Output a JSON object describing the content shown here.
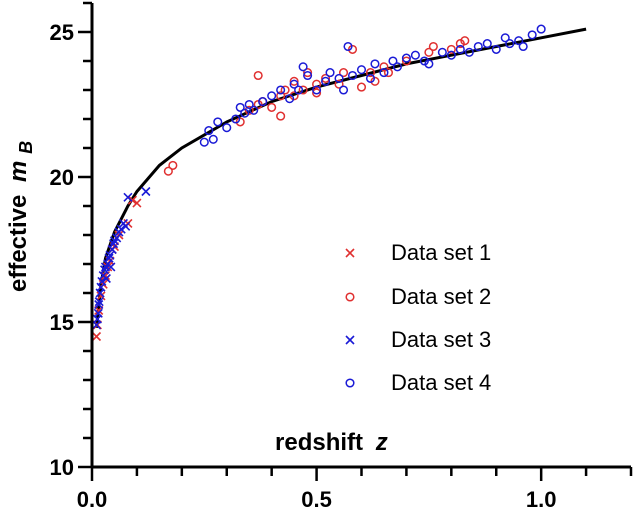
{
  "chart_data": {
    "type": "scatter",
    "xlabel": "redshift",
    "xlabel_var": "z",
    "ylabel": "effective",
    "ylabel_var": "m",
    "ylabel_sub": "B",
    "xlim": [
      0,
      1.2
    ],
    "ylim": [
      10,
      26
    ],
    "xticks": [
      0.0,
      0.5,
      1.0
    ],
    "xtick_labels": [
      "0.0",
      "0.5",
      "1.0"
    ],
    "yticks": [
      10,
      15,
      20,
      25
    ],
    "ytick_labels": [
      "10",
      "15",
      "20",
      "25"
    ],
    "legend_position": "center-right",
    "fit_curve": {
      "x": [
        0.01,
        0.02,
        0.03,
        0.05,
        0.08,
        0.1,
        0.15,
        0.2,
        0.3,
        0.4,
        0.5,
        0.6,
        0.7,
        0.8,
        0.9,
        1.0,
        1.1
      ],
      "y": [
        14.8,
        16.3,
        17.2,
        18.1,
        19.0,
        19.5,
        20.4,
        21.0,
        21.9,
        22.6,
        23.1,
        23.5,
        23.9,
        24.2,
        24.5,
        24.8,
        25.1
      ]
    },
    "series": [
      {
        "name": "Data set 1",
        "marker": "x",
        "color": "#e03030",
        "points": [
          [
            0.01,
            14.5
          ],
          [
            0.012,
            14.9
          ],
          [
            0.015,
            15.4
          ],
          [
            0.02,
            15.9
          ],
          [
            0.025,
            16.3
          ],
          [
            0.03,
            16.6
          ],
          [
            0.035,
            16.9
          ],
          [
            0.04,
            17.1
          ],
          [
            0.045,
            17.5
          ],
          [
            0.05,
            17.6
          ],
          [
            0.06,
            18.0
          ],
          [
            0.08,
            18.4
          ],
          [
            0.09,
            19.2
          ],
          [
            0.1,
            19.1
          ]
        ]
      },
      {
        "name": "Data set 2",
        "marker": "o",
        "color": "#e03030",
        "points": [
          [
            0.17,
            20.2
          ],
          [
            0.18,
            20.4
          ],
          [
            0.33,
            21.9
          ],
          [
            0.35,
            22.3
          ],
          [
            0.37,
            22.5
          ],
          [
            0.37,
            23.5
          ],
          [
            0.38,
            22.6
          ],
          [
            0.4,
            22.4
          ],
          [
            0.42,
            22.8
          ],
          [
            0.42,
            22.1
          ],
          [
            0.43,
            23.0
          ],
          [
            0.45,
            22.8
          ],
          [
            0.45,
            23.3
          ],
          [
            0.47,
            23.0
          ],
          [
            0.48,
            23.6
          ],
          [
            0.5,
            22.9
          ],
          [
            0.5,
            23.2
          ],
          [
            0.52,
            23.4
          ],
          [
            0.55,
            23.2
          ],
          [
            0.56,
            23.6
          ],
          [
            0.58,
            24.4
          ],
          [
            0.6,
            23.1
          ],
          [
            0.62,
            23.6
          ],
          [
            0.63,
            23.3
          ],
          [
            0.65,
            23.8
          ],
          [
            0.66,
            23.6
          ],
          [
            0.7,
            24.0
          ],
          [
            0.75,
            24.3
          ],
          [
            0.76,
            24.5
          ],
          [
            0.8,
            24.4
          ],
          [
            0.82,
            24.6
          ],
          [
            0.83,
            24.7
          ]
        ]
      },
      {
        "name": "Data set 3",
        "marker": "x",
        "color": "#1a1ad6",
        "points": [
          [
            0.01,
            14.9
          ],
          [
            0.012,
            15.1
          ],
          [
            0.014,
            15.3
          ],
          [
            0.015,
            15.6
          ],
          [
            0.016,
            15.7
          ],
          [
            0.018,
            16.0
          ],
          [
            0.02,
            16.2
          ],
          [
            0.022,
            16.4
          ],
          [
            0.025,
            16.6
          ],
          [
            0.028,
            16.8
          ],
          [
            0.03,
            16.9
          ],
          [
            0.032,
            16.5
          ],
          [
            0.035,
            17.0
          ],
          [
            0.038,
            17.2
          ],
          [
            0.04,
            17.3
          ],
          [
            0.042,
            16.9
          ],
          [
            0.045,
            17.5
          ],
          [
            0.048,
            17.7
          ],
          [
            0.05,
            17.8
          ],
          [
            0.055,
            17.9
          ],
          [
            0.06,
            18.1
          ],
          [
            0.065,
            18.2
          ],
          [
            0.07,
            18.4
          ],
          [
            0.075,
            18.3
          ],
          [
            0.08,
            19.3
          ],
          [
            0.12,
            19.5
          ]
        ]
      },
      {
        "name": "Data set 4",
        "marker": "o",
        "color": "#1a1ad6",
        "points": [
          [
            0.25,
            21.2
          ],
          [
            0.26,
            21.6
          ],
          [
            0.27,
            21.3
          ],
          [
            0.28,
            21.9
          ],
          [
            0.3,
            21.7
          ],
          [
            0.32,
            22.0
          ],
          [
            0.33,
            22.4
          ],
          [
            0.34,
            22.2
          ],
          [
            0.35,
            22.5
          ],
          [
            0.36,
            22.3
          ],
          [
            0.38,
            22.6
          ],
          [
            0.4,
            22.8
          ],
          [
            0.42,
            23.0
          ],
          [
            0.44,
            22.7
          ],
          [
            0.45,
            23.2
          ],
          [
            0.46,
            23.0
          ],
          [
            0.47,
            23.8
          ],
          [
            0.48,
            23.5
          ],
          [
            0.5,
            23.0
          ],
          [
            0.52,
            23.3
          ],
          [
            0.53,
            23.6
          ],
          [
            0.55,
            23.4
          ],
          [
            0.56,
            23.0
          ],
          [
            0.57,
            24.5
          ],
          [
            0.58,
            23.5
          ],
          [
            0.6,
            23.7
          ],
          [
            0.62,
            23.4
          ],
          [
            0.63,
            23.9
          ],
          [
            0.65,
            23.6
          ],
          [
            0.67,
            24.0
          ],
          [
            0.68,
            23.8
          ],
          [
            0.7,
            24.1
          ],
          [
            0.72,
            24.2
          ],
          [
            0.74,
            24.0
          ],
          [
            0.75,
            23.9
          ],
          [
            0.78,
            24.3
          ],
          [
            0.8,
            24.2
          ],
          [
            0.82,
            24.4
          ],
          [
            0.84,
            24.3
          ],
          [
            0.86,
            24.5
          ],
          [
            0.88,
            24.6
          ],
          [
            0.9,
            24.4
          ],
          [
            0.92,
            24.8
          ],
          [
            0.93,
            24.6
          ],
          [
            0.95,
            24.7
          ],
          [
            0.96,
            24.5
          ],
          [
            0.98,
            24.9
          ],
          [
            1.0,
            25.1
          ]
        ]
      }
    ]
  }
}
